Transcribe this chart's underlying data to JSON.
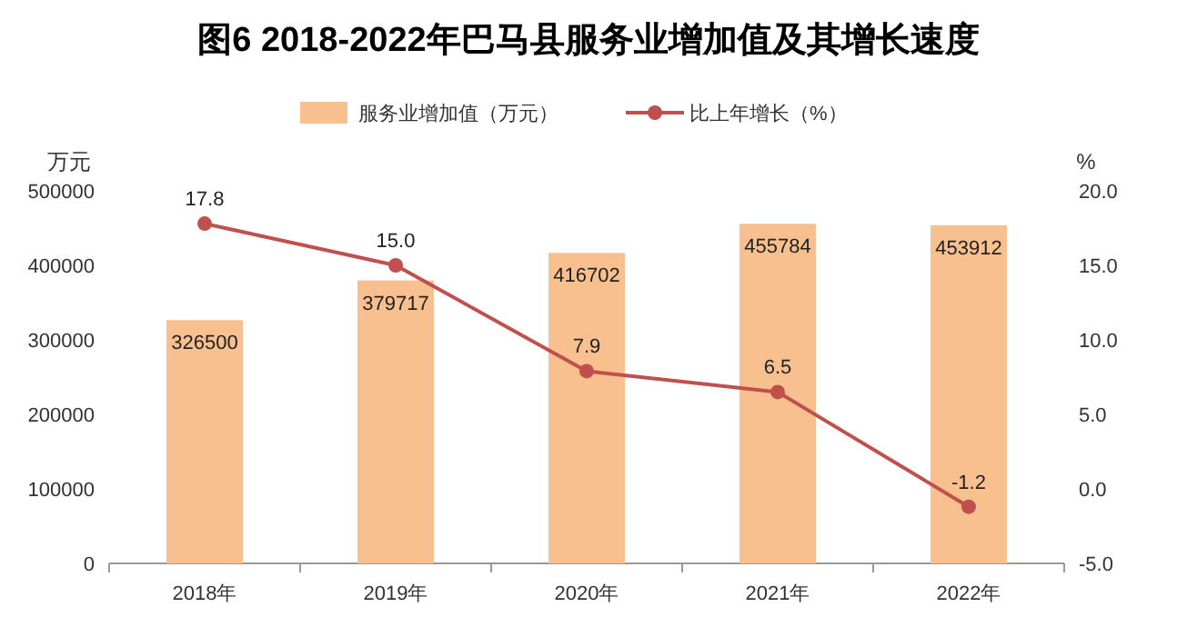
{
  "chart_data": {
    "type": "bar",
    "title": "图6  2018-2022年巴马县服务业增加值及其增长速度",
    "categories": [
      "2018年",
      "2019年",
      "2020年",
      "2021年",
      "2022年"
    ],
    "ylabel": "万元",
    "y2label": "%",
    "legend": "top",
    "data_labels": true,
    "marker": "circle",
    "ylim": [
      0,
      500000
    ],
    "yticks": [
      0,
      100000,
      200000,
      300000,
      400000,
      500000
    ],
    "y2lim": [
      -5,
      20
    ],
    "y2ticks": [
      {
        "value": -5,
        "label": "-5.0"
      },
      {
        "value": 0,
        "label": "0.0"
      },
      {
        "value": 5,
        "label": "5.0"
      },
      {
        "value": 10,
        "label": "10.0"
      },
      {
        "value": 15,
        "label": "15.0"
      },
      {
        "value": 20,
        "label": "20.0"
      }
    ],
    "series": [
      {
        "name": "服务业增加值（万元）",
        "color": "#f9c08f",
        "values": [
          326500,
          379717,
          416702,
          455784,
          453912
        ]
      },
      {
        "name": "比上年增长（%）",
        "type": "line",
        "axis": "y2",
        "color": "#c0504d",
        "values": [
          17.8,
          15.0,
          7.9,
          6.5,
          -1.2
        ],
        "value_labels": [
          "17.8",
          "15.0",
          "7.9",
          "6.5",
          "-1.2"
        ]
      }
    ]
  }
}
